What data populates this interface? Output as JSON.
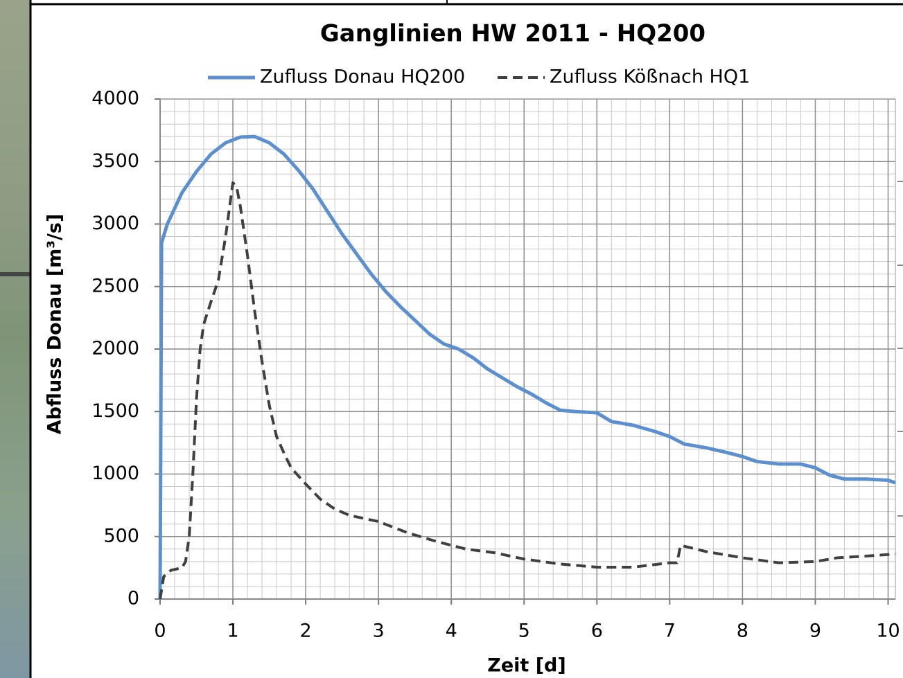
{
  "chart_data": {
    "type": "line",
    "title": "Ganglinien HW 2011 - HQ200",
    "x_label": "Zeit [d]",
    "y_label": "Abfluss Donau [m³/s]",
    "xlim": [
      0,
      10.1
    ],
    "ylim": [
      0,
      4000
    ],
    "xticks": [
      0,
      1,
      2,
      3,
      4,
      5,
      6,
      7,
      8,
      9,
      10
    ],
    "yticks": [
      0,
      500,
      1000,
      1500,
      2000,
      2500,
      3000,
      3500,
      4000
    ],
    "grid": true,
    "legend": "top",
    "series": [
      {
        "name": "Zufluss Donau HQ200",
        "color": "#5b8fd0",
        "style": "solid",
        "x": [
          0,
          0.02,
          0.1,
          0.3,
          0.5,
          0.7,
          0.9,
          1.1,
          1.3,
          1.5,
          1.7,
          1.9,
          2.1,
          2.3,
          2.5,
          2.7,
          2.9,
          3.1,
          3.3,
          3.5,
          3.7,
          3.9,
          4.1,
          4.3,
          4.5,
          4.7,
          4.9,
          5.1,
          5.3,
          5.5,
          5.7,
          6.0,
          6.2,
          6.5,
          6.8,
          7.0,
          7.2,
          7.5,
          7.8,
          8.0,
          8.2,
          8.5,
          8.8,
          9.0,
          9.2,
          9.4,
          9.7,
          10.0,
          10.1
        ],
        "values": [
          0,
          2850,
          3000,
          3250,
          3420,
          3560,
          3650,
          3695,
          3700,
          3650,
          3560,
          3430,
          3280,
          3100,
          2920,
          2760,
          2600,
          2460,
          2340,
          2230,
          2120,
          2040,
          2000,
          1930,
          1840,
          1770,
          1700,
          1640,
          1570,
          1510,
          1500,
          1490,
          1420,
          1390,
          1340,
          1300,
          1240,
          1210,
          1170,
          1140,
          1100,
          1080,
          1080,
          1050,
          990,
          960,
          960,
          950,
          930
        ]
      },
      {
        "name": "Zufluss Kößnach HQ1",
        "color": "#404040",
        "style": "dashed",
        "x": [
          0,
          0.05,
          0.15,
          0.3,
          0.35,
          0.4,
          0.45,
          0.5,
          0.55,
          0.6,
          0.7,
          0.8,
          0.9,
          1.0,
          1.05,
          1.1,
          1.2,
          1.3,
          1.4,
          1.5,
          1.6,
          1.7,
          1.8,
          2.0,
          2.2,
          2.4,
          2.6,
          3.0,
          3.4,
          3.8,
          4.2,
          4.6,
          5.0,
          5.5,
          6.0,
          6.5,
          7.0,
          7.1,
          7.15,
          7.5,
          8.0,
          8.5,
          9.0,
          9.3,
          9.6,
          10.1
        ],
        "values": [
          0,
          180,
          230,
          250,
          300,
          500,
          1000,
          1600,
          2000,
          2200,
          2380,
          2550,
          2900,
          3330,
          3300,
          3150,
          2750,
          2300,
          1900,
          1550,
          1300,
          1170,
          1050,
          920,
          800,
          720,
          670,
          620,
          530,
          460,
          400,
          370,
          320,
          280,
          255,
          255,
          290,
          290,
          430,
          380,
          330,
          290,
          300,
          330,
          340,
          360
        ]
      }
    ]
  }
}
